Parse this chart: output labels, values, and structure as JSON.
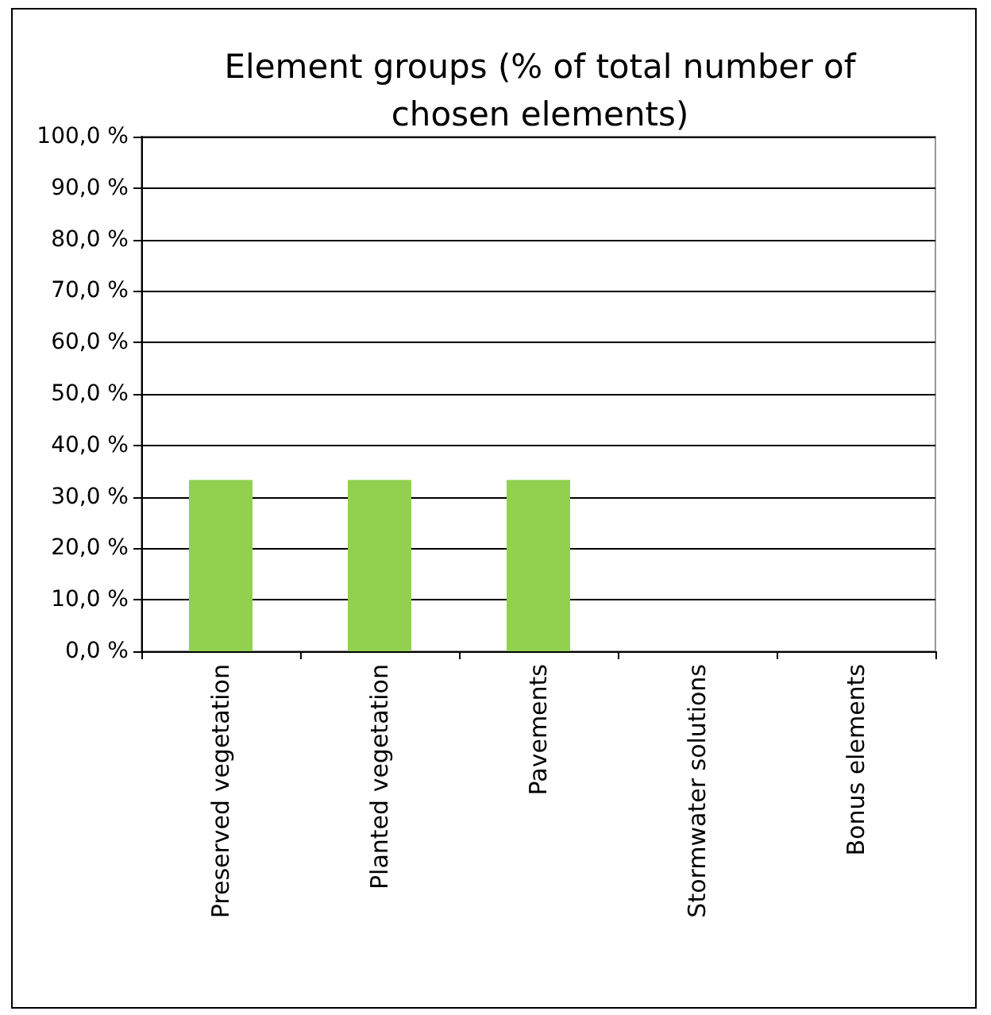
{
  "chart_data": {
    "type": "bar",
    "title": "Element groups (% of total number of\nchosen elements)",
    "categories": [
      "Preserved vegetation",
      "Planted vegetation",
      "Pavements",
      "Stormwater solutions",
      "Bonus elements"
    ],
    "values": [
      33.3,
      33.3,
      33.3,
      0,
      0
    ],
    "color": "#92d050",
    "ylim": [
      0,
      100
    ],
    "yticks": [
      {
        "value": 0,
        "label": "0,0 %"
      },
      {
        "value": 10,
        "label": "10,0 %"
      },
      {
        "value": 20,
        "label": "20,0 %"
      },
      {
        "value": 30,
        "label": "30,0 %"
      },
      {
        "value": 40,
        "label": "40,0 %"
      },
      {
        "value": 50,
        "label": "50,0 %"
      },
      {
        "value": 60,
        "label": "60,0 %"
      },
      {
        "value": 70,
        "label": "70,0 %"
      },
      {
        "value": 80,
        "label": "80,0 %"
      },
      {
        "value": 90,
        "label": "90,0 %"
      },
      {
        "value": 100,
        "label": "100,0 %"
      }
    ],
    "grid": "y"
  }
}
